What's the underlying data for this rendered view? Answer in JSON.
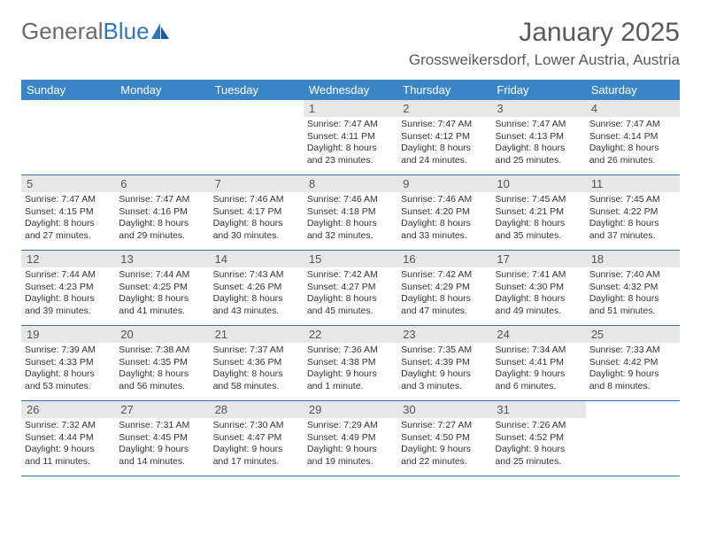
{
  "logo": {
    "text1": "General",
    "text2": "Blue"
  },
  "title": "January 2025",
  "location": "Grossweikersdorf, Lower Austria, Austria",
  "colors": {
    "header_bg": "#3a85c6",
    "header_text": "#ffffff",
    "daynum_bg": "#e7e7e7",
    "border": "#3a6ea5",
    "logo_gray": "#6a6a6a",
    "logo_blue": "#2f77b6"
  },
  "weekdays": [
    "Sunday",
    "Monday",
    "Tuesday",
    "Wednesday",
    "Thursday",
    "Friday",
    "Saturday"
  ],
  "weeks": [
    [
      {
        "n": "",
        "sr": "",
        "ss": "",
        "dl": ""
      },
      {
        "n": "",
        "sr": "",
        "ss": "",
        "dl": ""
      },
      {
        "n": "",
        "sr": "",
        "ss": "",
        "dl": ""
      },
      {
        "n": "1",
        "sr": "Sunrise: 7:47 AM",
        "ss": "Sunset: 4:11 PM",
        "dl": "Daylight: 8 hours and 23 minutes."
      },
      {
        "n": "2",
        "sr": "Sunrise: 7:47 AM",
        "ss": "Sunset: 4:12 PM",
        "dl": "Daylight: 8 hours and 24 minutes."
      },
      {
        "n": "3",
        "sr": "Sunrise: 7:47 AM",
        "ss": "Sunset: 4:13 PM",
        "dl": "Daylight: 8 hours and 25 minutes."
      },
      {
        "n": "4",
        "sr": "Sunrise: 7:47 AM",
        "ss": "Sunset: 4:14 PM",
        "dl": "Daylight: 8 hours and 26 minutes."
      }
    ],
    [
      {
        "n": "5",
        "sr": "Sunrise: 7:47 AM",
        "ss": "Sunset: 4:15 PM",
        "dl": "Daylight: 8 hours and 27 minutes."
      },
      {
        "n": "6",
        "sr": "Sunrise: 7:47 AM",
        "ss": "Sunset: 4:16 PM",
        "dl": "Daylight: 8 hours and 29 minutes."
      },
      {
        "n": "7",
        "sr": "Sunrise: 7:46 AM",
        "ss": "Sunset: 4:17 PM",
        "dl": "Daylight: 8 hours and 30 minutes."
      },
      {
        "n": "8",
        "sr": "Sunrise: 7:46 AM",
        "ss": "Sunset: 4:18 PM",
        "dl": "Daylight: 8 hours and 32 minutes."
      },
      {
        "n": "9",
        "sr": "Sunrise: 7:46 AM",
        "ss": "Sunset: 4:20 PM",
        "dl": "Daylight: 8 hours and 33 minutes."
      },
      {
        "n": "10",
        "sr": "Sunrise: 7:45 AM",
        "ss": "Sunset: 4:21 PM",
        "dl": "Daylight: 8 hours and 35 minutes."
      },
      {
        "n": "11",
        "sr": "Sunrise: 7:45 AM",
        "ss": "Sunset: 4:22 PM",
        "dl": "Daylight: 8 hours and 37 minutes."
      }
    ],
    [
      {
        "n": "12",
        "sr": "Sunrise: 7:44 AM",
        "ss": "Sunset: 4:23 PM",
        "dl": "Daylight: 8 hours and 39 minutes."
      },
      {
        "n": "13",
        "sr": "Sunrise: 7:44 AM",
        "ss": "Sunset: 4:25 PM",
        "dl": "Daylight: 8 hours and 41 minutes."
      },
      {
        "n": "14",
        "sr": "Sunrise: 7:43 AM",
        "ss": "Sunset: 4:26 PM",
        "dl": "Daylight: 8 hours and 43 minutes."
      },
      {
        "n": "15",
        "sr": "Sunrise: 7:42 AM",
        "ss": "Sunset: 4:27 PM",
        "dl": "Daylight: 8 hours and 45 minutes."
      },
      {
        "n": "16",
        "sr": "Sunrise: 7:42 AM",
        "ss": "Sunset: 4:29 PM",
        "dl": "Daylight: 8 hours and 47 minutes."
      },
      {
        "n": "17",
        "sr": "Sunrise: 7:41 AM",
        "ss": "Sunset: 4:30 PM",
        "dl": "Daylight: 8 hours and 49 minutes."
      },
      {
        "n": "18",
        "sr": "Sunrise: 7:40 AM",
        "ss": "Sunset: 4:32 PM",
        "dl": "Daylight: 8 hours and 51 minutes."
      }
    ],
    [
      {
        "n": "19",
        "sr": "Sunrise: 7:39 AM",
        "ss": "Sunset: 4:33 PM",
        "dl": "Daylight: 8 hours and 53 minutes."
      },
      {
        "n": "20",
        "sr": "Sunrise: 7:38 AM",
        "ss": "Sunset: 4:35 PM",
        "dl": "Daylight: 8 hours and 56 minutes."
      },
      {
        "n": "21",
        "sr": "Sunrise: 7:37 AM",
        "ss": "Sunset: 4:36 PM",
        "dl": "Daylight: 8 hours and 58 minutes."
      },
      {
        "n": "22",
        "sr": "Sunrise: 7:36 AM",
        "ss": "Sunset: 4:38 PM",
        "dl": "Daylight: 9 hours and 1 minute."
      },
      {
        "n": "23",
        "sr": "Sunrise: 7:35 AM",
        "ss": "Sunset: 4:39 PM",
        "dl": "Daylight: 9 hours and 3 minutes."
      },
      {
        "n": "24",
        "sr": "Sunrise: 7:34 AM",
        "ss": "Sunset: 4:41 PM",
        "dl": "Daylight: 9 hours and 6 minutes."
      },
      {
        "n": "25",
        "sr": "Sunrise: 7:33 AM",
        "ss": "Sunset: 4:42 PM",
        "dl": "Daylight: 9 hours and 8 minutes."
      }
    ],
    [
      {
        "n": "26",
        "sr": "Sunrise: 7:32 AM",
        "ss": "Sunset: 4:44 PM",
        "dl": "Daylight: 9 hours and 11 minutes."
      },
      {
        "n": "27",
        "sr": "Sunrise: 7:31 AM",
        "ss": "Sunset: 4:45 PM",
        "dl": "Daylight: 9 hours and 14 minutes."
      },
      {
        "n": "28",
        "sr": "Sunrise: 7:30 AM",
        "ss": "Sunset: 4:47 PM",
        "dl": "Daylight: 9 hours and 17 minutes."
      },
      {
        "n": "29",
        "sr": "Sunrise: 7:29 AM",
        "ss": "Sunset: 4:49 PM",
        "dl": "Daylight: 9 hours and 19 minutes."
      },
      {
        "n": "30",
        "sr": "Sunrise: 7:27 AM",
        "ss": "Sunset: 4:50 PM",
        "dl": "Daylight: 9 hours and 22 minutes."
      },
      {
        "n": "31",
        "sr": "Sunrise: 7:26 AM",
        "ss": "Sunset: 4:52 PM",
        "dl": "Daylight: 9 hours and 25 minutes."
      },
      {
        "n": "",
        "sr": "",
        "ss": "",
        "dl": ""
      }
    ]
  ]
}
